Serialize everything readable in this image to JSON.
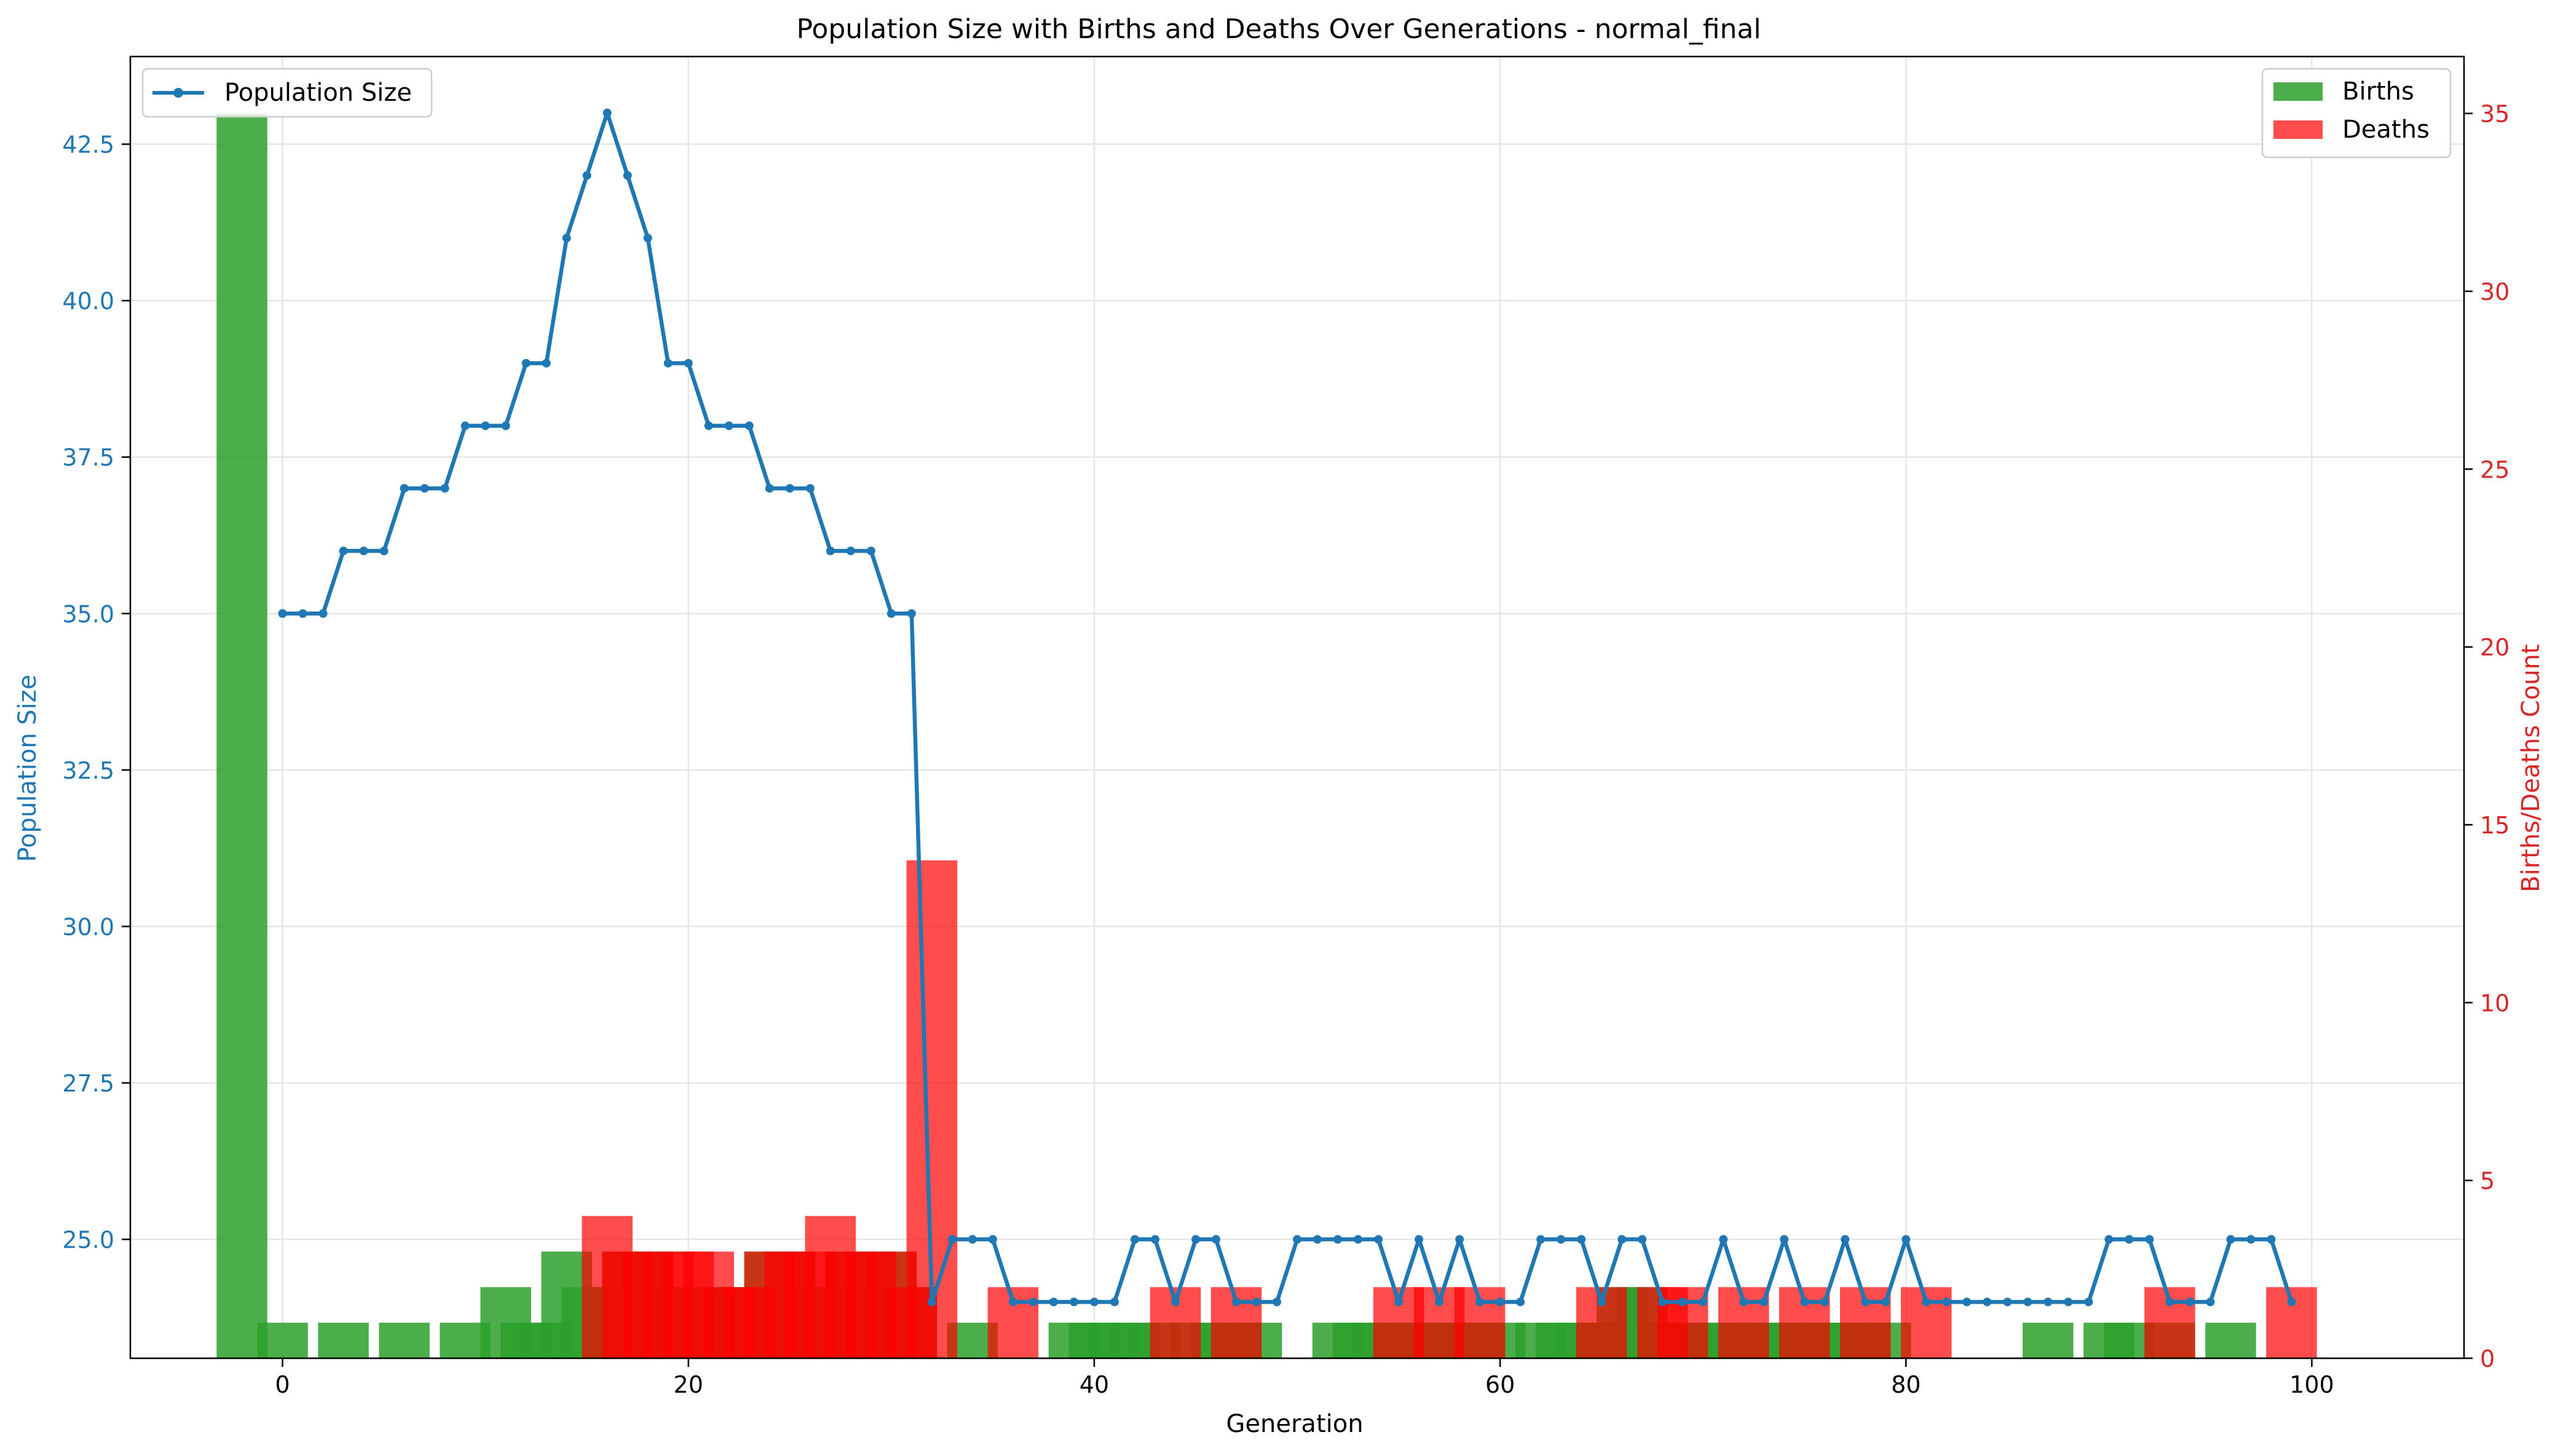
{
  "chart_data": {
    "type": "line+bar",
    "title": "Population Size with Births and Deaths Over Generations - normal_final",
    "xlabel": "Generation",
    "ylabel_left": "Population Size",
    "ylabel_right": "Births/Deaths Count",
    "xlim": [
      -7.5,
      107.5
    ],
    "ylim_left": [
      23.1,
      43.9
    ],
    "ylim_right": [
      0,
      36.6
    ],
    "x_ticks": [
      0,
      20,
      40,
      60,
      80,
      100
    ],
    "y_left_ticks": [
      25.0,
      27.5,
      30.0,
      32.5,
      35.0,
      37.5,
      40.0,
      42.5
    ],
    "y_left_tick_labels": [
      "25.0",
      "27.5",
      "30.0",
      "32.5",
      "35.0",
      "37.5",
      "40.0",
      "42.5"
    ],
    "y_right_ticks": [
      0,
      5,
      10,
      15,
      20,
      25,
      30,
      35
    ],
    "grid": true,
    "bar_width": 2.5,
    "colors": {
      "population": "#1f77b4",
      "births": "#2ca02c",
      "deaths": "#ff0000",
      "right_axis": "#d62728"
    },
    "legends": {
      "left": {
        "placement": "upper-left",
        "entries": [
          "Population Size"
        ]
      },
      "right": {
        "placement": "upper-right",
        "entries": [
          "Births",
          "Deaths"
        ]
      }
    },
    "population": {
      "name": "Population Size",
      "x": [
        0,
        1,
        2,
        3,
        4,
        5,
        6,
        7,
        8,
        9,
        10,
        11,
        12,
        13,
        14,
        15,
        16,
        17,
        18,
        19,
        20,
        21,
        22,
        23,
        24,
        25,
        26,
        27,
        28,
        29,
        30,
        31,
        32,
        33,
        34,
        35,
        36,
        37,
        38,
        39,
        40,
        41,
        42,
        43,
        44,
        45,
        46,
        47,
        48,
        49,
        50,
        51,
        52,
        53,
        54,
        55,
        56,
        57,
        58,
        59,
        60,
        61,
        62,
        63,
        64,
        65,
        66,
        67,
        68,
        69,
        70,
        71,
        72,
        73,
        74,
        75,
        76,
        77,
        78,
        79,
        80,
        81,
        82,
        83,
        84,
        85,
        86,
        87,
        88,
        89,
        90,
        91,
        92,
        93,
        94,
        95,
        96,
        97,
        98,
        99
      ],
      "y": [
        35,
        35,
        35,
        36,
        36,
        36,
        37,
        37,
        37,
        38,
        38,
        38,
        39,
        39,
        41,
        42,
        43,
        42,
        41,
        39,
        39,
        38,
        38,
        38,
        37,
        37,
        37,
        36,
        36,
        36,
        35,
        35,
        24,
        25,
        25,
        25,
        24,
        24,
        24,
        24,
        24,
        24,
        25,
        25,
        24,
        25,
        25,
        24,
        24,
        24,
        25,
        25,
        25,
        25,
        25,
        24,
        25,
        24,
        25,
        24,
        24,
        24,
        25,
        25,
        25,
        24,
        25,
        25,
        24,
        24,
        24,
        25,
        24,
        24,
        25,
        24,
        24,
        25,
        24,
        24,
        25,
        24,
        24,
        24,
        24,
        24,
        24,
        24,
        24,
        24,
        25,
        25,
        25,
        24,
        24,
        24,
        25,
        25,
        25,
        24
      ]
    },
    "births": {
      "name": "Births",
      "x": [
        -2,
        0,
        3,
        6,
        9,
        11,
        12,
        13,
        14,
        15,
        16,
        17,
        18,
        19,
        20,
        21,
        22,
        23,
        24,
        25,
        26,
        27,
        28,
        29,
        30,
        31,
        34,
        39,
        40,
        41,
        42,
        43,
        45,
        46,
        47,
        48,
        52,
        53,
        54,
        55,
        56,
        57,
        58,
        59,
        60,
        62,
        63,
        64,
        65,
        66,
        67,
        68,
        69,
        70,
        71,
        72,
        73,
        74,
        75,
        76,
        77,
        78,
        79,
        87,
        90,
        91,
        93,
        96
      ],
      "values": [
        35,
        1,
        1,
        1,
        1,
        2,
        1,
        1,
        3,
        2,
        2,
        3,
        3,
        2,
        2,
        2,
        2,
        2,
        3,
        3,
        2,
        2,
        3,
        2,
        3,
        2,
        1,
        1,
        1,
        1,
        1,
        1,
        1,
        1,
        1,
        1,
        1,
        1,
        1,
        1,
        1,
        1,
        1,
        1,
        1,
        1,
        1,
        1,
        1,
        2,
        2,
        1,
        1,
        1,
        1,
        1,
        1,
        1,
        1,
        1,
        1,
        1,
        1,
        1,
        1,
        1,
        1,
        1
      ]
    },
    "deaths": {
      "name": "Deaths",
      "x": [
        16,
        17,
        18,
        19,
        20,
        21,
        22,
        23,
        24,
        25,
        26,
        27,
        28,
        29,
        30,
        31,
        32,
        36,
        44,
        47,
        55,
        57,
        59,
        65,
        68,
        69,
        72,
        75,
        78,
        81,
        93,
        99
      ],
      "values": [
        4,
        3,
        3,
        3,
        3,
        3,
        2,
        2,
        3,
        3,
        3,
        4,
        3,
        3,
        3,
        2,
        14,
        2,
        2,
        2,
        2,
        2,
        2,
        2,
        2,
        2,
        2,
        2,
        2,
        2,
        2,
        2
      ]
    }
  }
}
